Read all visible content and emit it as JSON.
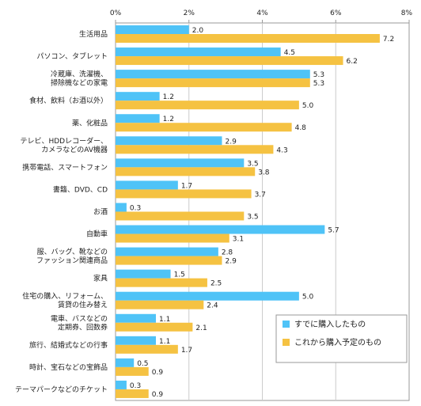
{
  "chart_data": {
    "type": "bar",
    "orientation": "horizontal",
    "title": "",
    "xlabel": "",
    "ylabel": "",
    "xlim": [
      0,
      8
    ],
    "x_ticks": [
      "0%",
      "2%",
      "4%",
      "6%",
      "8%"
    ],
    "grid": true,
    "legend_position": "bottom-right",
    "categories": [
      [
        "生活用品"
      ],
      [
        "パソコン、タブレット"
      ],
      [
        "冷蔵庫、洗濯機、",
        "掃除機などの家電"
      ],
      [
        "食材、飲料（お酒以外）"
      ],
      [
        "薬、化粧品"
      ],
      [
        "テレビ、HDDレコーダー、",
        "カメラなどのAV機器"
      ],
      [
        "携帯電話、スマートフォン"
      ],
      [
        "書籍、DVD、CD"
      ],
      [
        "お酒"
      ],
      [
        "自動車"
      ],
      [
        "服、バッグ、靴などの",
        "ファッション関連商品"
      ],
      [
        "家具"
      ],
      [
        "住宅の購入、リフォーム、",
        "賃貸の住み替え"
      ],
      [
        "電車、バスなどの",
        "定期券、回数券"
      ],
      [
        "旅行、結婚式などの行事"
      ],
      [
        "時計、宝石などの宝飾品"
      ],
      [
        "テーマパークなどのチケット"
      ]
    ],
    "series": [
      {
        "name": "すでに購入したもの",
        "color": "#4FC3F7",
        "values": [
          2.0,
          4.5,
          5.3,
          1.2,
          1.2,
          2.9,
          3.5,
          1.7,
          0.3,
          5.7,
          2.8,
          1.5,
          5.0,
          1.1,
          1.1,
          0.5,
          0.3
        ],
        "labels": [
          "2.0",
          "4.5",
          "5.3",
          "1.2",
          "1.2",
          "2.9",
          "3.5",
          "1.7",
          "0.3",
          "5.7",
          "2.8",
          "1.5",
          "5.0",
          "1.1",
          "1.1",
          "0.5",
          "0.3"
        ]
      },
      {
        "name": "これから購入予定のもの",
        "color": "#F5C242",
        "values": [
          7.2,
          6.2,
          5.3,
          5.0,
          4.8,
          4.3,
          3.8,
          3.7,
          3.5,
          3.1,
          2.9,
          2.5,
          2.4,
          2.1,
          1.7,
          0.9,
          0.9
        ],
        "labels": [
          "7.2",
          "6.2",
          "5.3",
          "5.0",
          "4.8",
          "4.3",
          "3.8",
          "3.7",
          "3.5",
          "3.1",
          "2.9",
          "2.5",
          "2.4",
          "2.1",
          "1.7",
          "0.9",
          "0.9"
        ]
      }
    ]
  },
  "colors": {
    "axis": "#999999",
    "grid": "#cccccc",
    "legend_border": "#999999"
  }
}
